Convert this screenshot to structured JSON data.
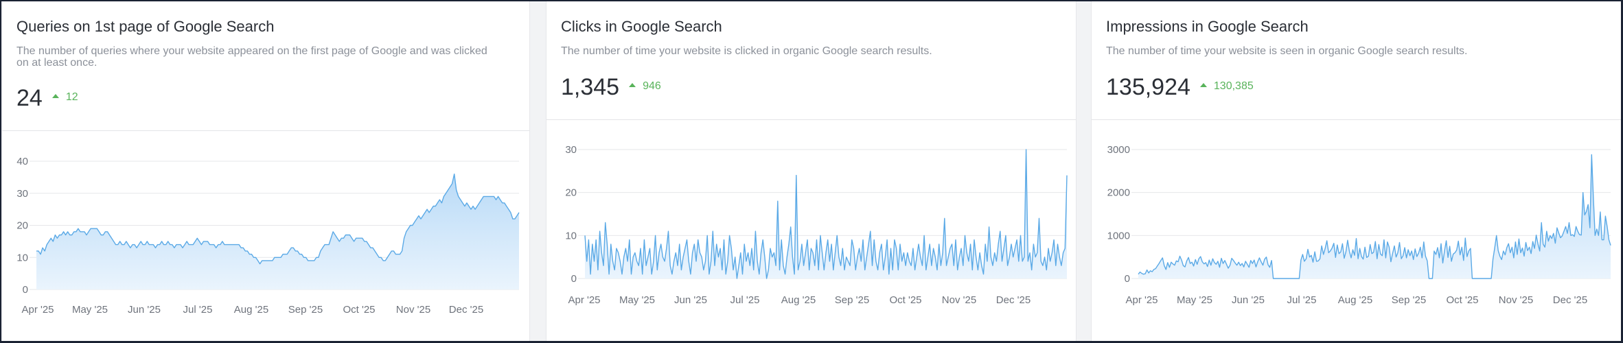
{
  "cards": [
    {
      "title": "Queries on 1st page of Google Search",
      "description": "The number of queries where your website appeared on the first page of Google and was clicked on at least once.",
      "value": "24",
      "delta": "12",
      "delta_color": "#58b35a",
      "icon": "arrow-up-icon"
    },
    {
      "title": "Clicks in Google Search",
      "description": "The number of time your website is clicked in organic Google search results.",
      "value": "1,345",
      "delta": "946",
      "delta_color": "#58b35a",
      "icon": "arrow-up-icon"
    },
    {
      "title": "Impressions in Google Search",
      "description": "The number of time your website is seen in organic Google search results.",
      "value": "135,924",
      "delta": "130,385",
      "delta_color": "#58b35a",
      "icon": "arrow-up-icon"
    }
  ],
  "colors": {
    "line": "#5aa9e6",
    "fill_top": "#b8daf7",
    "fill_bottom": "#eaf4fd",
    "grid": "#e6e7ea"
  },
  "chart_data": [
    {
      "type": "area",
      "x_labels": [
        "Apr '25",
        "May '25",
        "Jun '25",
        "Jul '25",
        "Aug '25",
        "Sep '25",
        "Oct '25",
        "Nov '25",
        "Dec '25"
      ],
      "y_ticks": [
        0,
        10,
        20,
        30,
        40
      ],
      "ylim": [
        0,
        40
      ],
      "grid": true,
      "values": [
        12,
        12,
        11,
        13,
        12,
        14,
        15,
        16,
        15,
        17,
        16,
        17,
        17,
        18,
        17,
        18,
        17,
        17,
        18,
        18,
        19,
        18,
        18,
        18,
        17,
        18,
        19,
        19,
        19,
        19,
        18,
        17,
        17,
        18,
        18,
        17,
        16,
        15,
        14,
        14,
        15,
        14,
        14,
        15,
        14,
        13,
        14,
        14,
        13,
        14,
        15,
        14,
        14,
        15,
        14,
        14,
        14,
        13,
        14,
        14,
        15,
        14,
        14,
        15,
        14,
        14,
        13,
        14,
        14,
        14,
        13,
        14,
        15,
        14,
        14,
        14,
        15,
        16,
        15,
        14,
        15,
        15,
        15,
        14,
        14,
        14,
        13,
        14,
        14,
        15,
        14,
        14,
        14,
        14,
        14,
        14,
        14,
        14,
        13,
        13,
        12,
        12,
        11,
        11,
        10,
        10,
        9,
        8,
        9,
        9,
        9,
        9,
        9,
        9,
        10,
        10,
        10,
        10,
        11,
        11,
        11,
        12,
        13,
        13,
        12,
        12,
        11,
        11,
        10,
        10,
        9,
        9,
        9,
        9,
        10,
        10,
        12,
        13,
        14,
        14,
        14,
        16,
        18,
        17,
        16,
        15,
        16,
        16,
        17,
        17,
        17,
        16,
        15,
        16,
        16,
        16,
        16,
        15,
        15,
        14,
        13,
        13,
        12,
        11,
        10,
        10,
        9,
        9,
        10,
        11,
        12,
        12,
        11,
        11,
        11,
        12,
        16,
        18,
        19,
        20,
        20,
        21,
        22,
        23,
        22,
        23,
        24,
        25,
        24,
        25,
        26,
        26,
        27,
        28,
        27,
        29,
        30,
        31,
        32,
        33,
        36,
        31,
        29,
        28,
        27,
        26,
        27,
        26,
        25,
        26,
        25,
        26,
        27,
        28,
        29,
        29,
        29,
        29,
        29,
        29,
        28,
        29,
        28,
        27,
        27,
        26,
        25,
        24,
        22,
        22,
        23,
        24
      ]
    },
    {
      "type": "area",
      "x_labels": [
        "Apr '25",
        "May '25",
        "Jun '25",
        "Jul '25",
        "Aug '25",
        "Sep '25",
        "Oct '25",
        "Nov '25",
        "Dec '25"
      ],
      "y_ticks": [
        0,
        10,
        20,
        30
      ],
      "ylim": [
        0,
        30
      ],
      "grid": true,
      "values": [
        10,
        4,
        9,
        1,
        8,
        4,
        9,
        2,
        11,
        6,
        3,
        13,
        8,
        1,
        8,
        4,
        2,
        7,
        6,
        4,
        1,
        5,
        7,
        4,
        9,
        1,
        5,
        6,
        4,
        3,
        7,
        1,
        9,
        3,
        5,
        7,
        1,
        4,
        10,
        2,
        6,
        8,
        5,
        4,
        7,
        11,
        3,
        1,
        4,
        6,
        3,
        8,
        2,
        5,
        7,
        9,
        4,
        1,
        6,
        8,
        4,
        9,
        6,
        5,
        2,
        4,
        10,
        1,
        4,
        11,
        3,
        8,
        5,
        7,
        2,
        9,
        1,
        4,
        10,
        7,
        2,
        5,
        0,
        3,
        6,
        1,
        8,
        4,
        6,
        3,
        7,
        2,
        11,
        4,
        1,
        6,
        9,
        5,
        0,
        2,
        7,
        5,
        6,
        3,
        18,
        2,
        9,
        3,
        1,
        5,
        8,
        12,
        5,
        1,
        24,
        2,
        4,
        8,
        3,
        6,
        9,
        2,
        7,
        6,
        3,
        9,
        2,
        10,
        6,
        2,
        6,
        9,
        4,
        8,
        2,
        6,
        10,
        5,
        3,
        7,
        2,
        5,
        4,
        3,
        9,
        7,
        2,
        5,
        7,
        4,
        9,
        2,
        5,
        8,
        11,
        3,
        9,
        4,
        2,
        6,
        8,
        2,
        5,
        9,
        1,
        7,
        2,
        9,
        7,
        2,
        8,
        4,
        6,
        3,
        6,
        4,
        3,
        7,
        2,
        5,
        8,
        5,
        3,
        10,
        2,
        5,
        8,
        3,
        7,
        5,
        2,
        8,
        3,
        6,
        14,
        3,
        5,
        7,
        8,
        3,
        9,
        2,
        5,
        7,
        3,
        10,
        6,
        4,
        8,
        2,
        9,
        5,
        2,
        6,
        3,
        1,
        8,
        4,
        12,
        5,
        3,
        6,
        4,
        8,
        11,
        4,
        7,
        10,
        3,
        5,
        8,
        5,
        7,
        9,
        4,
        10,
        4,
        5,
        30,
        4,
        6,
        2,
        8,
        5,
        6,
        14,
        4,
        3,
        5,
        2,
        7,
        4,
        6,
        9,
        3,
        8,
        5,
        3,
        6,
        7,
        24
      ]
    },
    {
      "type": "area",
      "x_labels": [
        "Apr '25",
        "May '25",
        "Jun '25",
        "Jul '25",
        "Aug '25",
        "Sep '25",
        "Oct '25",
        "Nov '25",
        "Dec '25"
      ],
      "y_ticks": [
        0,
        1000,
        2000,
        3000
      ],
      "ylim": [
        0,
        3000
      ],
      "grid": true,
      "values": [
        100,
        150,
        120,
        100,
        110,
        200,
        130,
        180,
        160,
        210,
        230,
        290,
        350,
        420,
        480,
        300,
        210,
        370,
        260,
        380,
        340,
        310,
        410,
        390,
        520,
        430,
        300,
        270,
        410,
        490,
        350,
        380,
        290,
        440,
        330,
        460,
        510,
        390,
        340,
        370,
        280,
        430,
        310,
        460,
        370,
        330,
        400,
        260,
        470,
        350,
        420,
        330,
        240,
        310,
        470,
        420,
        360,
        310,
        380,
        300,
        350,
        270,
        400,
        330,
        260,
        420,
        350,
        430,
        270,
        390,
        480,
        390,
        310,
        450,
        500,
        320,
        260,
        420,
        0,
        0,
        0,
        0,
        0,
        0,
        0,
        0,
        0,
        0,
        0,
        0,
        0,
        0,
        0,
        0,
        430,
        560,
        400,
        460,
        680,
        500,
        540,
        380,
        620,
        400,
        410,
        460,
        760,
        560,
        700,
        880,
        600,
        640,
        710,
        820,
        490,
        780,
        580,
        620,
        810,
        470,
        620,
        890,
        630,
        480,
        670,
        540,
        930,
        460,
        700,
        510,
        450,
        730,
        490,
        520,
        790,
        580,
        610,
        860,
        460,
        790,
        570,
        530,
        900,
        480,
        850,
        730,
        390,
        590,
        760,
        500,
        600,
        840,
        460,
        530,
        720,
        480,
        670,
        530,
        640,
        440,
        690,
        510,
        590,
        730,
        480,
        850,
        520,
        410,
        0,
        0,
        0,
        640,
        560,
        720,
        480,
        810,
        360,
        650,
        880,
        490,
        750,
        400,
        570,
        600,
        660,
        870,
        550,
        730,
        420,
        940,
        510,
        640,
        700,
        0,
        0,
        0,
        0,
        0,
        0,
        0,
        0,
        0,
        0,
        0,
        0,
        450,
        720,
        1000,
        650,
        520,
        440,
        640,
        550,
        720,
        810,
        600,
        730,
        480,
        850,
        560,
        920,
        600,
        710,
        520,
        840,
        650,
        730,
        580,
        860,
        700,
        1010,
        800,
        640,
        1300,
        800,
        730,
        1100,
        870,
        1000,
        930,
        1050,
        820,
        1180,
        1060,
        950,
        990,
        1100,
        1210,
        1050,
        1300,
        1000,
        1020,
        980,
        1210,
        1100,
        1020,
        1010,
        2000,
        1480,
        1560,
        1720,
        1180,
        2880,
        1900,
        1000,
        1150,
        1000,
        1550,
        900,
        900,
        1450,
        1200,
        900,
        770
      ]
    }
  ]
}
